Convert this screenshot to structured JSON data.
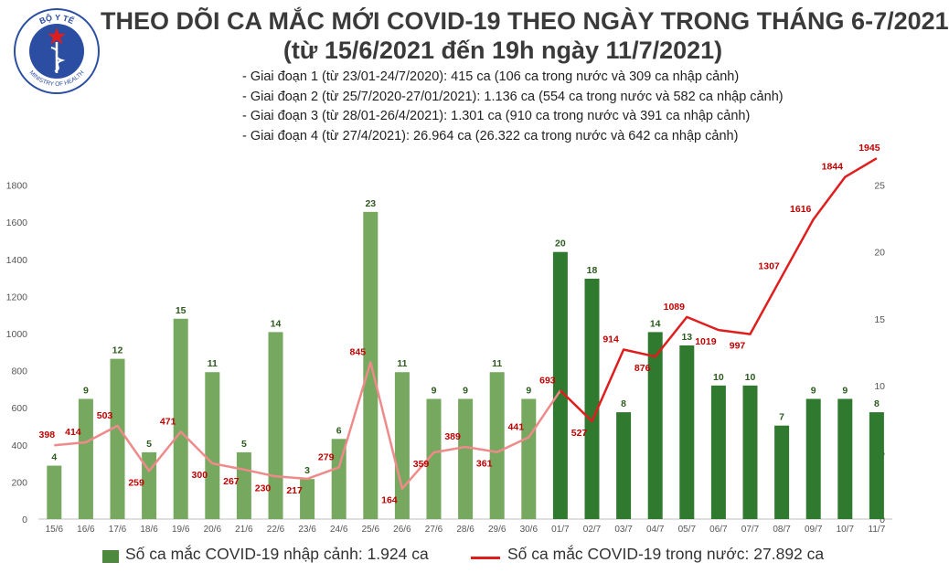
{
  "title_line1": "THEO DÕI CA MẮC MỚI COVID-19 THEO NGÀY TRONG THÁNG 6-7/2021",
  "title_line2": "(từ 15/6/2021 đến 19h ngày 11/7/2021)",
  "logo": {
    "icon": "ministry-of-health-seal",
    "text_top": "BỘ Y TẾ",
    "text_bottom": "MINISTRY OF HEALTH"
  },
  "notes": [
    "- Giai đoạn 1 (từ 23/01-24/7/2020): 415 ca (106 ca trong nước và 309 ca nhập cảnh)",
    "- Giai đoạn 2 (từ 25/7/2020-27/01/2021): 1.136 ca (554 ca trong nước và 582 ca nhập cảnh)",
    "- Giai đoạn 3 (từ 28/01-26/4/2021): 1.301 ca (910 ca trong nước và 391 ca nhập cảnh)",
    "- Giai đoạn 4 (từ 27/4/2021): 26.964 ca (26.322 ca trong nước và 642 ca nhập cảnh)"
  ],
  "legend": {
    "bar_label": "Số ca mắc COVID-19 nhập cảnh: 1.924 ca",
    "line_label": "Số ca mắc COVID-19 trong nước: 27.892 ca"
  },
  "colors": {
    "bar_light": "#76a860",
    "bar_dark": "#2f7a2f",
    "line_light": "#ef8a8a",
    "line_dark": "#e01d1d",
    "label_bar": "#2b5b1d",
    "label_line": "#c00000",
    "title": "#3a3a3a",
    "logo_blue": "#2b4ea2"
  },
  "chart_data": {
    "type": "bar",
    "categories": [
      "15/6",
      "16/6",
      "17/6",
      "18/6",
      "19/6",
      "20/6",
      "21/6",
      "22/6",
      "23/6",
      "24/6",
      "25/6",
      "26/6",
      "27/6",
      "28/6",
      "29/6",
      "30/6",
      "01/7",
      "02/7",
      "03/7",
      "04/7",
      "05/7",
      "06/7",
      "07/7",
      "08/7",
      "09/7",
      "10/7",
      "11/7"
    ],
    "series": [
      {
        "name": "Số ca mắc COVID-19 nhập cảnh: 1.924 ca",
        "type": "bar",
        "axis": "right",
        "values": [
          4,
          9,
          12,
          5,
          15,
          11,
          5,
          14,
          3,
          6,
          23,
          11,
          9,
          9,
          11,
          9,
          20,
          18,
          8,
          14,
          13,
          10,
          10,
          7,
          9,
          9,
          8
        ]
      },
      {
        "name": "Số ca mắc COVID-19 trong nước: 27.892 ca",
        "type": "line",
        "axis": "left",
        "values": [
          398,
          414,
          503,
          259,
          471,
          300,
          267,
          230,
          217,
          279,
          845,
          164,
          359,
          389,
          361,
          441,
          693,
          527,
          914,
          876,
          1089,
          1019,
          997,
          1307,
          1616,
          1844,
          1945
        ]
      }
    ],
    "highlight_from_index": 16,
    "y_left": {
      "ticks": [
        0,
        200,
        400,
        600,
        800,
        1000,
        1200,
        1400,
        1600,
        1800
      ],
      "lim": [
        0,
        2000
      ]
    },
    "y_right": {
      "ticks": [
        0,
        5,
        10,
        15,
        20,
        25
      ],
      "lim": [
        0,
        27.78
      ]
    },
    "grid": false,
    "legend_position": "bottom"
  }
}
